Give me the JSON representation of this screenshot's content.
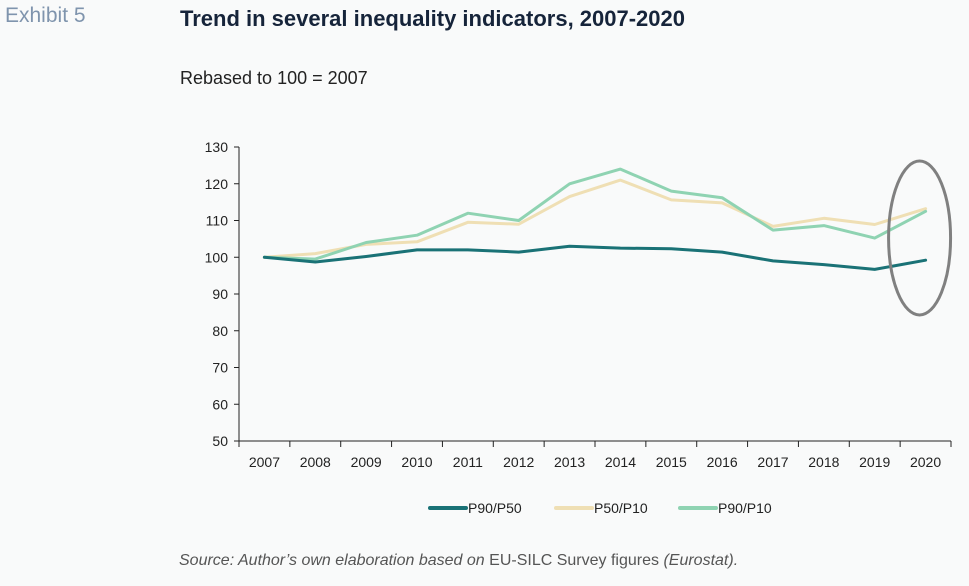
{
  "exhibit_label": "Exhibit 5",
  "title": "Trend in several inequality indicators, 2007-2020",
  "subtitle": "Rebased to 100 = 2007",
  "source": {
    "part1": "Source: Author’s own elaboration based on",
    "part2": "EU-SILC Survey figures",
    "part3": "(Eurostat)",
    "part4": "."
  },
  "chart_data": {
    "type": "line",
    "title": "Trend in several inequality indicators, 2007-2020",
    "subtitle": "Rebased to 100 = 2007",
    "x": [
      "2007",
      "2008",
      "2009",
      "2010",
      "2011",
      "2012",
      "2013",
      "2014",
      "2015",
      "2016",
      "2017",
      "2018",
      "2019",
      "2020"
    ],
    "ylim": [
      50,
      130
    ],
    "yticks": [
      50,
      60,
      70,
      80,
      90,
      100,
      110,
      120,
      130
    ],
    "grid": false,
    "legend_position": "bottom",
    "series": [
      {
        "name": "P90/P50",
        "color": "#1a7276",
        "values": [
          100,
          98.7,
          100.2,
          102,
          102,
          101.4,
          103,
          102.5,
          102.3,
          101.4,
          99,
          98,
          96.7,
          99.2
        ]
      },
      {
        "name": "P50/P10",
        "color": "#efdfb4",
        "values": [
          100,
          101,
          103.5,
          104.2,
          109.5,
          109,
          116.5,
          121,
          115.6,
          114.8,
          108.4,
          110.6,
          108.9,
          113.2
        ]
      },
      {
        "name": "P90/P10",
        "color": "#8fd3b2",
        "values": [
          100,
          99.5,
          104,
          106,
          112,
          110,
          120,
          124,
          118,
          116.2,
          107.4,
          108.6,
          105.2,
          112.5
        ]
      }
    ],
    "annotation": {
      "type": "ellipse",
      "around": "2020",
      "color": "#808080"
    }
  }
}
